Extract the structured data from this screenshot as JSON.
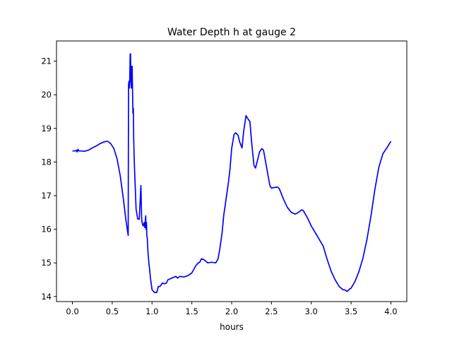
{
  "chart_data": {
    "type": "line",
    "title": "Water Depth h at gauge 2",
    "xlabel": "hours",
    "ylabel": "",
    "xlim": [
      -0.2,
      4.2
    ],
    "ylim": [
      13.85,
      21.6
    ],
    "xticks": [
      0.0,
      0.5,
      1.0,
      1.5,
      2.0,
      2.5,
      3.0,
      3.5,
      4.0
    ],
    "xtick_labels": [
      "0.0",
      "0.5",
      "1.0",
      "1.5",
      "2.0",
      "2.5",
      "3.0",
      "3.5",
      "4.0"
    ],
    "yticks": [
      14,
      15,
      16,
      17,
      18,
      19,
      20,
      21
    ],
    "ytick_labels": [
      "14",
      "15",
      "16",
      "17",
      "18",
      "19",
      "20",
      "21"
    ],
    "grid": false,
    "series": [
      {
        "color": "#0000ff",
        "x": [
          0.0,
          0.04,
          0.05,
          0.06,
          0.07,
          0.08,
          0.1,
          0.15,
          0.2,
          0.25,
          0.3,
          0.35,
          0.4,
          0.44,
          0.48,
          0.52,
          0.56,
          0.6,
          0.64,
          0.67,
          0.7,
          0.705,
          0.71,
          0.715,
          0.72,
          0.725,
          0.73,
          0.735,
          0.74,
          0.745,
          0.75,
          0.755,
          0.76,
          0.765,
          0.77,
          0.775,
          0.78,
          0.79,
          0.8,
          0.82,
          0.84,
          0.86,
          0.87,
          0.875,
          0.88,
          0.89,
          0.9,
          0.91,
          0.92,
          0.925,
          0.93,
          0.935,
          0.94,
          0.95,
          0.96,
          0.97,
          0.98,
          1.0,
          1.03,
          1.06,
          1.08,
          1.1,
          1.13,
          1.15,
          1.18,
          1.2,
          1.25,
          1.3,
          1.32,
          1.35,
          1.4,
          1.45,
          1.5,
          1.55,
          1.58,
          1.6,
          1.62,
          1.65,
          1.7,
          1.75,
          1.8,
          1.83,
          1.85,
          1.88,
          1.9,
          1.93,
          1.96,
          1.98,
          2.0,
          2.03,
          2.05,
          2.08,
          2.1,
          2.13,
          2.15,
          2.18,
          2.2,
          2.23,
          2.25,
          2.28,
          2.3,
          2.33,
          2.35,
          2.38,
          2.4,
          2.42,
          2.45,
          2.48,
          2.5,
          2.55,
          2.58,
          2.6,
          2.65,
          2.7,
          2.75,
          2.8,
          2.85,
          2.88,
          2.9,
          2.95,
          3.0,
          3.05,
          3.1,
          3.15,
          3.2,
          3.25,
          3.3,
          3.35,
          3.4,
          3.42,
          3.45,
          3.48,
          3.5,
          3.55,
          3.6,
          3.65,
          3.7,
          3.75,
          3.8,
          3.85,
          3.9,
          3.95,
          4.0
        ],
        "y": [
          18.33,
          18.33,
          18.35,
          18.3,
          18.38,
          18.33,
          18.33,
          18.32,
          18.35,
          18.42,
          18.48,
          18.55,
          18.6,
          18.62,
          18.55,
          18.4,
          18.1,
          17.6,
          16.9,
          16.3,
          15.82,
          20.3,
          20.4,
          20.2,
          20.45,
          21.2,
          21.22,
          20.4,
          20.2,
          20.8,
          20.85,
          20.1,
          19.45,
          19.6,
          18.7,
          18.2,
          17.8,
          17.2,
          16.6,
          16.3,
          16.3,
          17.3,
          16.3,
          16.2,
          16.15,
          16.1,
          16.2,
          16.05,
          16.4,
          16.0,
          16.2,
          15.8,
          15.75,
          15.3,
          15.0,
          14.8,
          14.55,
          14.2,
          14.12,
          14.12,
          14.3,
          14.3,
          14.4,
          14.38,
          14.4,
          14.5,
          14.55,
          14.6,
          14.55,
          14.6,
          14.58,
          14.62,
          14.7,
          14.92,
          15.0,
          15.02,
          15.12,
          15.1,
          15.0,
          15.02,
          15.0,
          15.12,
          15.4,
          15.9,
          16.4,
          16.9,
          17.4,
          17.8,
          18.4,
          18.82,
          18.87,
          18.8,
          18.6,
          18.42,
          18.9,
          19.38,
          19.3,
          19.2,
          18.6,
          17.9,
          17.82,
          18.1,
          18.3,
          18.4,
          18.35,
          18.1,
          17.7,
          17.3,
          17.22,
          17.25,
          17.25,
          17.2,
          16.9,
          16.65,
          16.5,
          16.45,
          16.52,
          16.58,
          16.55,
          16.35,
          16.1,
          15.9,
          15.7,
          15.5,
          15.1,
          14.75,
          14.5,
          14.3,
          14.2,
          14.2,
          14.15,
          14.22,
          14.25,
          14.45,
          14.75,
          15.15,
          15.7,
          16.4,
          17.2,
          17.85,
          18.25,
          18.42,
          18.62
        ]
      }
    ]
  }
}
